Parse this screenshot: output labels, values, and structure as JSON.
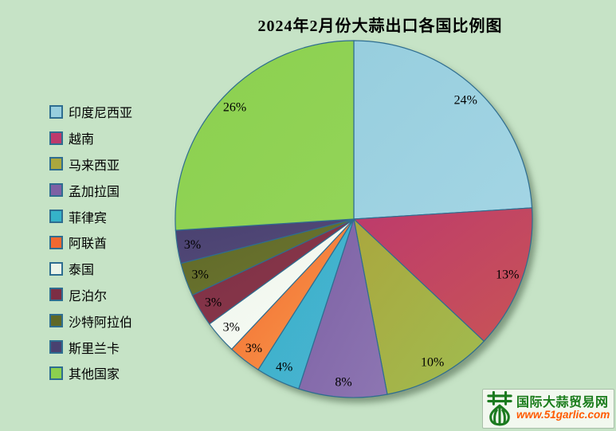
{
  "title": "2024年2月份大蒜出口各国比例图",
  "background_color": "#c6e3c6",
  "chart_data": {
    "type": "pie",
    "title": "2024年2月份大蒜出口各国比例图",
    "legend_position": "left",
    "direction": "clockwise",
    "start_angle_deg": 0,
    "stroke_color": "#2e6d90",
    "slices": [
      {
        "label": "印度尼西亚",
        "value": 24,
        "pct_label": "24%",
        "color": "#97cede",
        "color2": "#a3d5e4"
      },
      {
        "label": "越南",
        "value": 13,
        "pct_label": "13%",
        "color": "#bd3a6c",
        "color2": "#c85456"
      },
      {
        "label": "马来西亚",
        "value": 10,
        "pct_label": "10%",
        "color": "#aaa73e",
        "color2": "#a0bc50"
      },
      {
        "label": "孟加拉国",
        "value": 8,
        "pct_label": "8%",
        "color": "#7d60a4",
        "color2": "#8d76b2"
      },
      {
        "label": "菲律宾",
        "value": 4,
        "pct_label": "4%",
        "color": "#35b2c8",
        "color2": "#4db3d2"
      },
      {
        "label": "阿联酋",
        "value": 3,
        "pct_label": "3%",
        "color": "#f26830",
        "color2": "#f89c4c"
      },
      {
        "label": "泰国",
        "value": 3,
        "pct_label": "3%",
        "color": "#edf5ea",
        "color2": "#f9fcf7"
      },
      {
        "label": "尼泊尔",
        "value": 3,
        "pct_label": "3%",
        "color": "#7c2e44",
        "color2": "#8c3a4c"
      },
      {
        "label": "沙特阿拉伯",
        "value": 3,
        "pct_label": "3%",
        "color": "#5f6827",
        "color2": "#6e7732"
      },
      {
        "label": "斯里兰卡",
        "value": 3,
        "pct_label": "3%",
        "color": "#494170",
        "color2": "#554b7a"
      },
      {
        "label": "其他国家",
        "value": 26,
        "pct_label": "26%",
        "color": "#8bd04f",
        "color2": "#93d458"
      }
    ]
  },
  "watermark": {
    "site_name": "国际大蒜贸易网",
    "url": "www.51garlic.com",
    "logo_glyph": "garlic-bulb",
    "name_color": "#1a7c1b",
    "url_color": "#ff5a00",
    "logo_color": "#1b7a1f"
  }
}
